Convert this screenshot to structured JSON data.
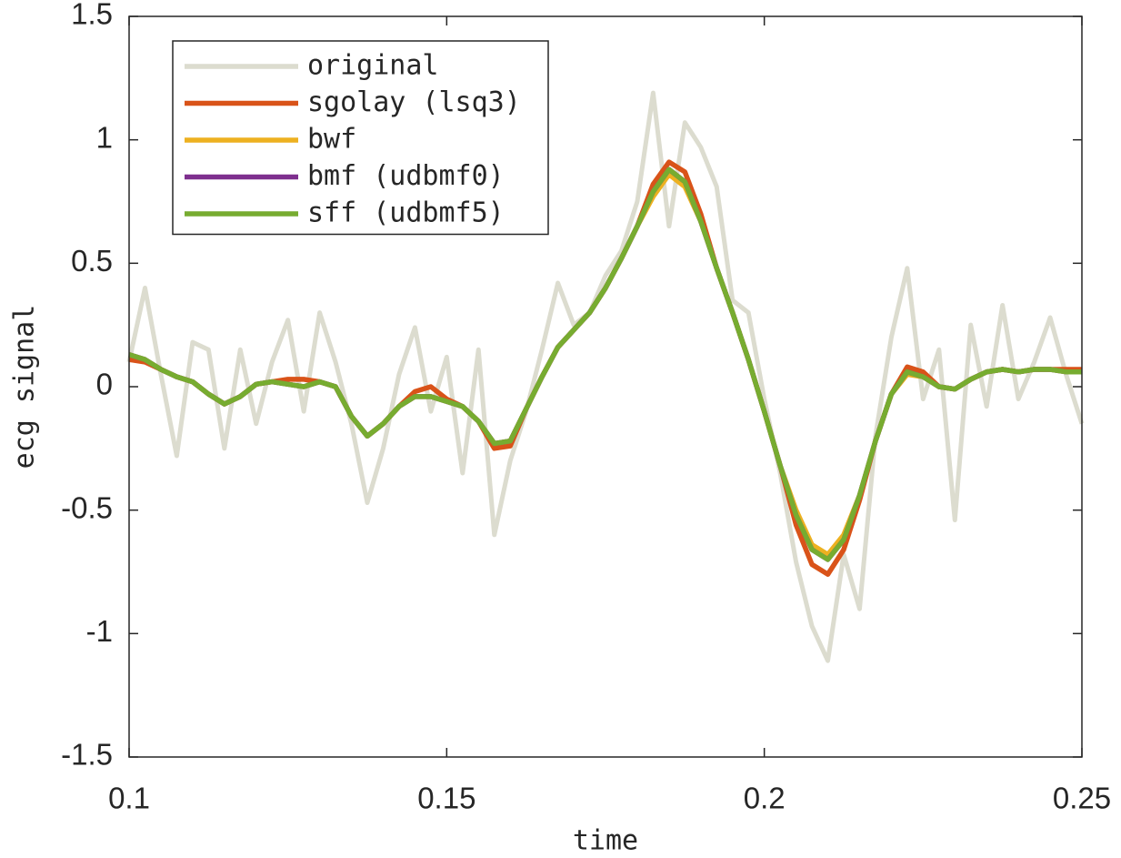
{
  "chart_data": {
    "type": "line",
    "xlabel": "time",
    "ylabel": "ecg signal",
    "x": [
      0.1,
      0.1025,
      0.105,
      0.1075,
      0.11,
      0.1125,
      0.115,
      0.1175,
      0.12,
      0.1225,
      0.125,
      0.1275,
      0.13,
      0.1325,
      0.135,
      0.1375,
      0.14,
      0.1425,
      0.145,
      0.1475,
      0.15,
      0.1525,
      0.155,
      0.1575,
      0.16,
      0.1625,
      0.165,
      0.1675,
      0.17,
      0.1725,
      0.175,
      0.1775,
      0.18,
      0.1825,
      0.185,
      0.1875,
      0.19,
      0.1925,
      0.195,
      0.1975,
      0.2,
      0.2025,
      0.205,
      0.2075,
      0.21,
      0.2125,
      0.215,
      0.2175,
      0.22,
      0.2225,
      0.225,
      0.2275,
      0.23,
      0.2325,
      0.235,
      0.2375,
      0.24,
      0.2425,
      0.245,
      0.2475,
      0.25
    ],
    "series": [
      {
        "name": "original",
        "color": "#dcdccf",
        "values": [
          0.1,
          0.4,
          0.05,
          -0.28,
          0.18,
          0.15,
          -0.25,
          0.15,
          -0.15,
          0.1,
          0.27,
          -0.1,
          0.3,
          0.1,
          -0.15,
          -0.47,
          -0.25,
          0.05,
          0.24,
          -0.1,
          0.12,
          -0.35,
          0.15,
          -0.6,
          -0.3,
          -0.1,
          0.15,
          0.42,
          0.25,
          0.3,
          0.45,
          0.55,
          0.75,
          1.19,
          0.65,
          1.07,
          0.97,
          0.81,
          0.35,
          0.3,
          -0.05,
          -0.35,
          -0.71,
          -0.97,
          -1.11,
          -0.68,
          -0.9,
          -0.2,
          0.2,
          0.48,
          -0.05,
          0.15,
          -0.54,
          0.25,
          -0.08,
          0.33,
          -0.05,
          0.1,
          0.28,
          0.05,
          -0.15
        ]
      },
      {
        "name": "sgolay (lsq3)",
        "color": "#d95319",
        "values": [
          0.11,
          0.1,
          0.07,
          0.04,
          0.02,
          -0.03,
          -0.07,
          -0.04,
          0.01,
          0.02,
          0.03,
          0.03,
          0.02,
          0.0,
          -0.12,
          -0.2,
          -0.15,
          -0.08,
          -0.02,
          0.0,
          -0.05,
          -0.08,
          -0.14,
          -0.25,
          -0.24,
          -0.09,
          0.04,
          0.16,
          0.23,
          0.3,
          0.4,
          0.52,
          0.65,
          0.82,
          0.91,
          0.87,
          0.7,
          0.48,
          0.3,
          0.11,
          -0.1,
          -0.32,
          -0.56,
          -0.72,
          -0.76,
          -0.66,
          -0.46,
          -0.22,
          -0.03,
          0.08,
          0.06,
          0.0,
          -0.01,
          0.03,
          0.06,
          0.07,
          0.06,
          0.07,
          0.07,
          0.07,
          0.07
        ]
      },
      {
        "name": "bwf",
        "color": "#edb120",
        "values": [
          0.13,
          0.11,
          0.07,
          0.04,
          0.02,
          -0.03,
          -0.07,
          -0.04,
          0.01,
          0.02,
          0.01,
          0.0,
          0.02,
          0.0,
          -0.12,
          -0.2,
          -0.15,
          -0.08,
          -0.04,
          -0.04,
          -0.06,
          -0.08,
          -0.14,
          -0.23,
          -0.22,
          -0.09,
          0.04,
          0.16,
          0.23,
          0.3,
          0.4,
          0.52,
          0.65,
          0.77,
          0.86,
          0.81,
          0.67,
          0.48,
          0.3,
          0.11,
          -0.1,
          -0.32,
          -0.5,
          -0.64,
          -0.68,
          -0.6,
          -0.44,
          -0.22,
          -0.03,
          0.05,
          0.04,
          0.0,
          -0.01,
          0.03,
          0.06,
          0.07,
          0.06,
          0.07,
          0.07,
          0.06,
          0.06
        ]
      },
      {
        "name": "bmf (udbmf0)",
        "color": "#7e2f8e",
        "values": [
          0.13,
          0.11,
          0.07,
          0.04,
          0.02,
          -0.03,
          -0.07,
          -0.04,
          0.01,
          0.02,
          0.01,
          0.0,
          0.02,
          0.0,
          -0.12,
          -0.2,
          -0.15,
          -0.08,
          -0.04,
          -0.04,
          -0.06,
          -0.08,
          -0.14,
          -0.23,
          -0.22,
          -0.09,
          0.04,
          0.16,
          0.23,
          0.3,
          0.4,
          0.52,
          0.65,
          0.79,
          0.88,
          0.83,
          0.67,
          0.48,
          0.3,
          0.11,
          -0.1,
          -0.32,
          -0.52,
          -0.66,
          -0.7,
          -0.62,
          -0.44,
          -0.22,
          -0.03,
          0.06,
          0.04,
          0.0,
          -0.01,
          0.03,
          0.06,
          0.07,
          0.06,
          0.07,
          0.07,
          0.06,
          0.06
        ]
      },
      {
        "name": "sff (udbmf5)",
        "color": "#77ac30",
        "values": [
          0.13,
          0.11,
          0.07,
          0.04,
          0.02,
          -0.03,
          -0.07,
          -0.04,
          0.01,
          0.02,
          0.01,
          0.0,
          0.02,
          0.0,
          -0.12,
          -0.2,
          -0.15,
          -0.08,
          -0.04,
          -0.04,
          -0.06,
          -0.08,
          -0.14,
          -0.23,
          -0.22,
          -0.09,
          0.04,
          0.16,
          0.23,
          0.3,
          0.4,
          0.52,
          0.65,
          0.79,
          0.88,
          0.83,
          0.67,
          0.48,
          0.3,
          0.11,
          -0.1,
          -0.32,
          -0.52,
          -0.66,
          -0.7,
          -0.62,
          -0.44,
          -0.22,
          -0.03,
          0.06,
          0.04,
          0.0,
          -0.01,
          0.03,
          0.06,
          0.07,
          0.06,
          0.07,
          0.07,
          0.06,
          0.06
        ]
      }
    ],
    "xlim": [
      0.1,
      0.25
    ],
    "xticks": [
      0.1,
      0.15,
      0.2,
      0.25
    ],
    "ylim": [
      -1.5,
      1.5
    ],
    "yticks": [
      -1.5,
      -1,
      -0.5,
      0,
      0.5,
      1,
      1.5
    ],
    "legend": "northwest"
  }
}
